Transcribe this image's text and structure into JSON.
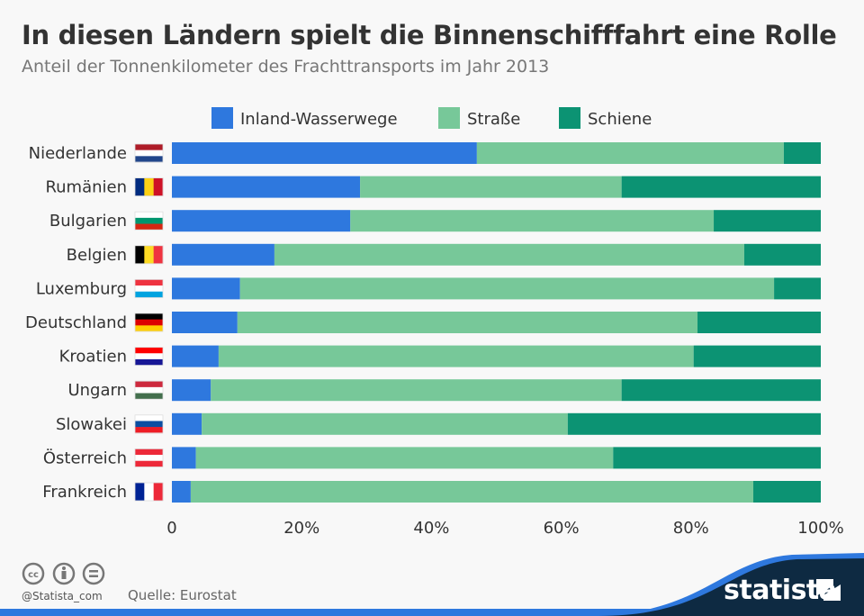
{
  "header": {
    "title": "In diesen Ländern spielt die Binnenschifffahrt eine Rolle",
    "subtitle": "Anteil der Tonnenkilometer des Frachttransports im Jahr 2013"
  },
  "chart_data": {
    "type": "bar",
    "orientation": "horizontal",
    "stacked": true,
    "categories": [
      "Niederlande",
      "Rumänien",
      "Bulgarien",
      "Belgien",
      "Luxemburg",
      "Deutschland",
      "Kroatien",
      "Ungarn",
      "Slowakei",
      "Österreich",
      "Frankreich"
    ],
    "series": [
      {
        "name": "Inland-Wasserwege",
        "color": "#2e78de",
        "values": [
          47.0,
          29.0,
          27.5,
          15.8,
          10.5,
          10.1,
          7.2,
          6.0,
          4.6,
          3.7,
          2.9
        ]
      },
      {
        "name": "Straße",
        "color": "#77c899",
        "values": [
          47.3,
          40.3,
          56.0,
          72.4,
          82.3,
          70.9,
          73.2,
          63.3,
          56.4,
          64.3,
          86.7
        ]
      },
      {
        "name": "Schiene",
        "color": "#0c9373",
        "values": [
          5.7,
          30.7,
          16.5,
          11.8,
          7.2,
          19.0,
          19.6,
          30.7,
          39.0,
          32.0,
          10.4
        ]
      }
    ],
    "xlim": [
      0,
      100
    ],
    "xticks": [
      "0",
      "20%",
      "40%",
      "60%",
      "80%",
      "100%"
    ],
    "xtick_values": [
      0,
      20,
      40,
      60,
      80,
      100
    ],
    "grid": false,
    "legend": "top",
    "flags": [
      {
        "dir": "h",
        "colors": [
          "#ae1c28",
          "#ffffff",
          "#21468b"
        ]
      },
      {
        "dir": "v",
        "colors": [
          "#002b7f",
          "#fcd116",
          "#ce1126"
        ]
      },
      {
        "dir": "h",
        "colors": [
          "#ffffff",
          "#00966e",
          "#d62612"
        ]
      },
      {
        "dir": "v",
        "colors": [
          "#000000",
          "#fdda24",
          "#ef3340"
        ]
      },
      {
        "dir": "h",
        "colors": [
          "#ef3340",
          "#ffffff",
          "#00a3e0"
        ]
      },
      {
        "dir": "h",
        "colors": [
          "#000000",
          "#dd0000",
          "#ffce00"
        ]
      },
      {
        "dir": "h",
        "colors": [
          "#ff0000",
          "#ffffff",
          "#171796"
        ]
      },
      {
        "dir": "h",
        "colors": [
          "#cd2a3e",
          "#ffffff",
          "#436f4d"
        ]
      },
      {
        "dir": "h",
        "colors": [
          "#ffffff",
          "#0b4ea2",
          "#ee1c25"
        ]
      },
      {
        "dir": "h",
        "colors": [
          "#ed2939",
          "#ffffff",
          "#ed2939"
        ]
      },
      {
        "dir": "v",
        "colors": [
          "#002395",
          "#ffffff",
          "#ed2939"
        ]
      }
    ]
  },
  "footer": {
    "handle": "@Statista_com",
    "source": "Quelle: Eurostat",
    "brand": "statista",
    "license_icons": [
      "cc-icon",
      "attribution-icon",
      "no-derivatives-icon"
    ]
  }
}
